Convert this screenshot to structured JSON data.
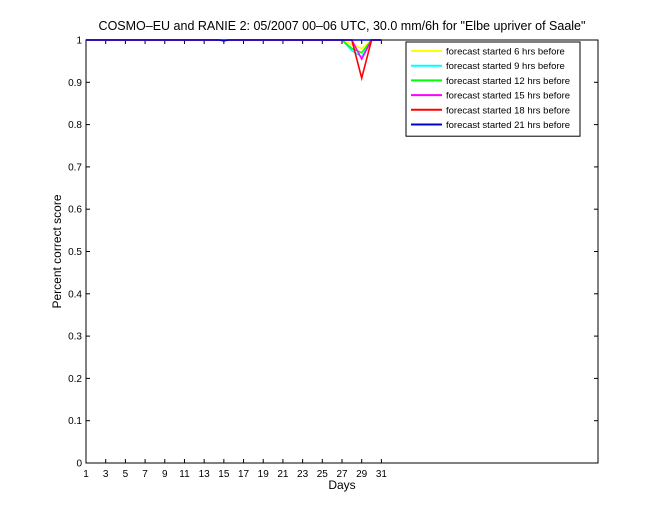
{
  "chart_data": {
    "type": "line",
    "title": "COSMO–EU and RANIE 2: 05/2007 00–06 UTC, 30.0 mm/6h for \"Elbe upriver of Saale\"",
    "xlabel": "Days",
    "ylabel": "Percent correct score",
    "xlim": [
      1,
      53
    ],
    "ylim": [
      0,
      1
    ],
    "xticks": [
      1,
      3,
      5,
      7,
      9,
      11,
      13,
      15,
      17,
      19,
      21,
      23,
      25,
      27,
      29,
      31
    ],
    "yticks": [
      0,
      0.1,
      0.2,
      0.3,
      0.4,
      0.5,
      0.6,
      0.7,
      0.8,
      0.9,
      1
    ],
    "ytick_labels": [
      "0",
      "0.1",
      "0.2",
      "0.3",
      "0.4",
      "0.5",
      "0.6",
      "0.7",
      "0.8",
      "0.9",
      "1"
    ],
    "legend_position": "top-right",
    "grid": false,
    "series": [
      {
        "name": "forecast started 6 hrs before",
        "color": "#ffff00",
        "x": [
          1,
          27,
          28,
          29,
          30,
          31
        ],
        "y": [
          1,
          1,
          0.99,
          0.98,
          1,
          1
        ]
      },
      {
        "name": "forecast started 9 hrs before",
        "color": "#00ffff",
        "x": [
          1,
          27,
          28,
          29,
          30,
          31
        ],
        "y": [
          1,
          1,
          0.975,
          0.96,
          1,
          1
        ]
      },
      {
        "name": "forecast started 12 hrs before",
        "color": "#00ff00",
        "x": [
          1,
          27,
          28,
          29,
          30,
          31
        ],
        "y": [
          1,
          1,
          0.98,
          0.97,
          1,
          1
        ]
      },
      {
        "name": "forecast started 15 hrs before",
        "color": "#ff00ff",
        "x": [
          1,
          27,
          28,
          29,
          30,
          31
        ],
        "y": [
          1,
          1,
          1,
          0.955,
          1,
          1
        ]
      },
      {
        "name": "forecast started 18 hrs before",
        "color": "#ff0000",
        "x": [
          1,
          27,
          28,
          29,
          30,
          31
        ],
        "y": [
          1,
          1,
          1,
          0.91,
          1,
          1
        ]
      },
      {
        "name": "forecast started 21 hrs before",
        "color": "#0000cd",
        "x": [
          1,
          14.5,
          15,
          15.5,
          31
        ],
        "y": [
          1,
          1,
          0.998,
          1,
          1
        ]
      }
    ]
  }
}
